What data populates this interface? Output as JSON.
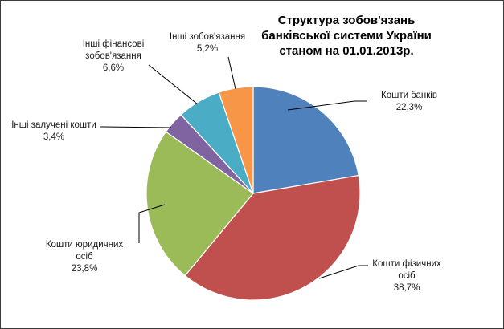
{
  "chart_data": {
    "type": "pie",
    "title_lines": [
      "Структура зобов'язань",
      "банківської системи України",
      "станом на 01.01.2013р."
    ],
    "slices": [
      {
        "label_lines": [
          "Кошти банків"
        ],
        "percent_label": "22,3%",
        "value": 22.3,
        "color": "#4f81bd"
      },
      {
        "label_lines": [
          "Кошти фізичних",
          "осіб"
        ],
        "percent_label": "38,7%",
        "value": 38.7,
        "color": "#c0504d"
      },
      {
        "label_lines": [
          "Кошти юридичних",
          "осіб"
        ],
        "percent_label": "23,8%",
        "value": 23.8,
        "color": "#9bbb59"
      },
      {
        "label_lines": [
          "Інші залучені кошти"
        ],
        "percent_label": "3,4%",
        "value": 3.4,
        "color": "#8064a2"
      },
      {
        "label_lines": [
          "Інші фінансові",
          "зобов'язання"
        ],
        "percent_label": "6,6%",
        "value": 6.6,
        "color": "#4bacc6"
      },
      {
        "label_lines": [
          "Інші зобов'язання"
        ],
        "percent_label": "5,2%",
        "value": 5.2,
        "color": "#f79646"
      }
    ],
    "start_angle_deg": 0,
    "direction": "clockwise"
  }
}
